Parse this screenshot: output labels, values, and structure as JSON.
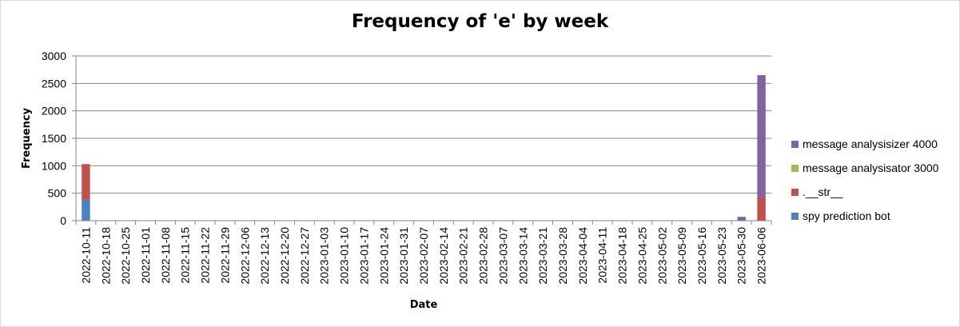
{
  "chart_data": {
    "type": "bar",
    "stacked": true,
    "title": "Frequency of 'e' by week",
    "xlabel": "Date",
    "ylabel": "Frequency",
    "ylim": [
      0,
      3000
    ],
    "yticks": [
      0,
      500,
      1000,
      1500,
      2000,
      2500,
      3000
    ],
    "grid": true,
    "legend_position": "right",
    "categories": [
      "2022-10-11",
      "2022-10-18",
      "2022-10-25",
      "2022-11-01",
      "2022-11-08",
      "2022-11-15",
      "2022-11-22",
      "2022-11-29",
      "2022-12-06",
      "2022-12-13",
      "2022-12-20",
      "2022-12-27",
      "2023-01-03",
      "2023-01-10",
      "2023-01-17",
      "2023-01-24",
      "2023-01-31",
      "2023-02-07",
      "2023-02-14",
      "2023-02-21",
      "2023-02-28",
      "2023-03-07",
      "2023-03-14",
      "2023-03-21",
      "2023-03-28",
      "2023-04-04",
      "2023-04-11",
      "2023-04-18",
      "2023-04-25",
      "2023-05-02",
      "2023-05-09",
      "2023-05-16",
      "2023-05-23",
      "2023-05-30",
      "2023-06-06"
    ],
    "series": [
      {
        "name": "spy prediction bot",
        "color": "#4f81bd",
        "values": [
          380,
          0,
          0,
          0,
          0,
          0,
          0,
          0,
          0,
          0,
          0,
          0,
          0,
          0,
          0,
          0,
          0,
          0,
          0,
          0,
          0,
          0,
          0,
          0,
          0,
          0,
          0,
          0,
          0,
          0,
          0,
          0,
          0,
          0,
          0
        ]
      },
      {
        "name": ".__str__",
        "color": "#c0504d",
        "values": [
          650,
          0,
          0,
          0,
          0,
          0,
          0,
          0,
          0,
          0,
          0,
          0,
          0,
          0,
          0,
          0,
          0,
          0,
          0,
          0,
          0,
          0,
          0,
          0,
          0,
          0,
          0,
          0,
          0,
          0,
          0,
          0,
          0,
          0,
          430
        ]
      },
      {
        "name": "message analysisator 3000",
        "color": "#9bbb59",
        "values": [
          0,
          0,
          0,
          0,
          0,
          0,
          0,
          0,
          0,
          0,
          0,
          0,
          0,
          0,
          0,
          0,
          0,
          0,
          0,
          0,
          0,
          0,
          0,
          0,
          0,
          0,
          0,
          0,
          0,
          0,
          0,
          0,
          0,
          0,
          0
        ]
      },
      {
        "name": "message analysisizer 4000",
        "color": "#8064a2",
        "values": [
          0,
          0,
          0,
          0,
          0,
          0,
          0,
          0,
          0,
          0,
          0,
          0,
          0,
          0,
          0,
          0,
          0,
          0,
          0,
          0,
          0,
          0,
          0,
          0,
          0,
          0,
          0,
          0,
          0,
          0,
          0,
          0,
          0,
          70,
          2220
        ]
      }
    ]
  }
}
